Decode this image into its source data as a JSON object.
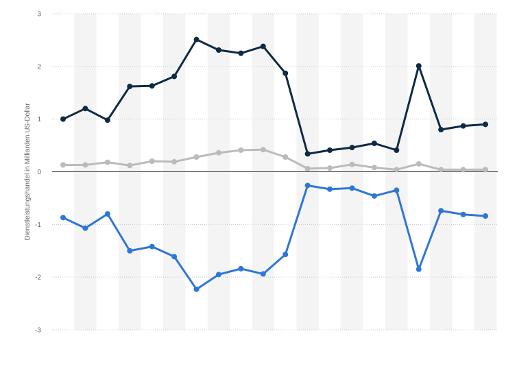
{
  "chart_data": {
    "type": "line",
    "title": "",
    "xlabel": "",
    "ylabel": "Dienstleistungshandel in Milliarden US-Dollar",
    "ylim": [
      -3,
      3
    ],
    "yticks": [
      "3",
      "2",
      "1",
      "0",
      "-1",
      "-2",
      "-3"
    ],
    "grid": true,
    "legend": "none",
    "x": [
      1,
      2,
      3,
      4,
      5,
      6,
      7,
      8,
      9,
      10,
      11,
      12,
      13,
      14,
      15,
      16,
      17,
      18,
      19,
      20
    ],
    "series": [
      {
        "color": "#0f2a44",
        "values": [
          1.0,
          1.2,
          0.98,
          1.62,
          1.63,
          1.81,
          2.51,
          2.31,
          2.25,
          2.38,
          1.87,
          0.34,
          0.41,
          0.46,
          0.54,
          0.41,
          2.01,
          0.8,
          0.87,
          0.9
        ]
      },
      {
        "color": "#bbbbbb",
        "values": [
          0.13,
          0.13,
          0.18,
          0.12,
          0.2,
          0.19,
          0.28,
          0.36,
          0.41,
          0.42,
          0.28,
          0.06,
          0.07,
          0.14,
          0.08,
          0.04,
          0.15,
          0.04,
          0.04,
          0.04
        ]
      },
      {
        "color": "#2f77d6",
        "values": [
          -0.87,
          -1.07,
          -0.8,
          -1.5,
          -1.42,
          -1.61,
          -2.23,
          -1.95,
          -1.84,
          -1.94,
          -1.57,
          -0.26,
          -0.33,
          -0.31,
          -0.46,
          -0.35,
          -1.85,
          -0.74,
          -0.81,
          -0.84
        ]
      }
    ]
  }
}
